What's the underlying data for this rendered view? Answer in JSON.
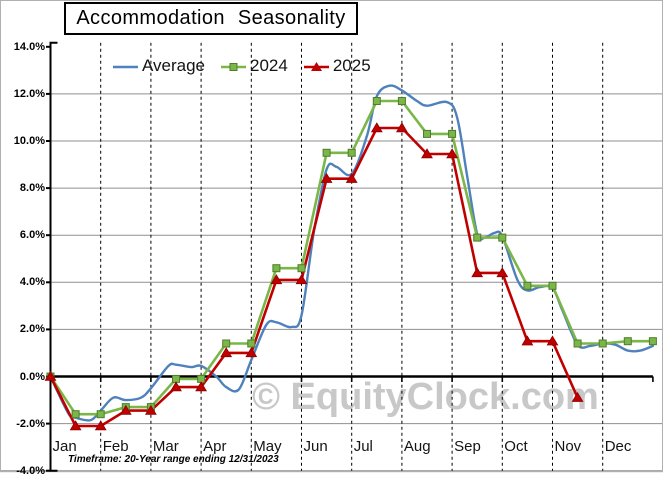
{
  "title": "Accommodation Seasonality",
  "watermark_text": "© EquityClock.com",
  "footnote": "Timeframe: 20-Year range ending 12/31/2023",
  "colors": {
    "average": "#4F81BD",
    "y2024": "#7AB648",
    "y2024_marker_border": "#4F7D2C",
    "y2025": "#C00000",
    "y2025_marker_border": "#8E0000",
    "gridline": "#8F8F8F",
    "axis": "#000000",
    "watermark": "#C8C8C8",
    "outer_border": "#B0B0B0"
  },
  "chart_data": {
    "type": "line",
    "title": "Accommodation Seasonality",
    "xlabel": "",
    "ylabel": "",
    "x_axis": {
      "categories": [
        "Jan",
        "Feb",
        "Mar",
        "Apr",
        "May",
        "Jun",
        "Jul",
        "Aug",
        "Sep",
        "Oct",
        "Nov",
        "Dec"
      ],
      "unit": "months (0 = Jan 1, 12 = Dec 31), semi-monthly data points"
    },
    "y_axis": {
      "tick_labels": [
        "14.0%",
        "12.0%",
        "10.0%",
        "8.0%",
        "6.0%",
        "4.0%",
        "2.0%",
        "0.0%",
        "-2.0%",
        "-4.0%"
      ],
      "tick_values": [
        14,
        12,
        10,
        8,
        6,
        4,
        2,
        0,
        -2,
        -4
      ],
      "min": -4,
      "max": 14,
      "step": 2,
      "unit": "%"
    },
    "legend": [
      "Average",
      "2024",
      "2025"
    ],
    "legend_position": "top",
    "grid": true,
    "series": [
      {
        "name": "Average",
        "color": "#4F81BD",
        "marker": "none",
        "x": [
          0,
          0.35,
          0.5,
          0.8,
          1.0,
          1.25,
          1.5,
          1.8,
          2.0,
          2.35,
          2.5,
          2.8,
          3.0,
          3.3,
          3.5,
          3.75,
          4.0,
          4.3,
          4.5,
          4.8,
          5.0,
          5.25,
          5.5,
          5.7,
          6.0,
          6.3,
          6.5,
          6.75,
          7.0,
          7.3,
          7.5,
          7.9,
          8.1,
          8.3,
          8.5,
          8.65,
          8.85,
          9.0,
          9.3,
          9.5,
          9.75,
          10.0,
          10.2,
          10.5,
          10.75,
          11.0,
          11.25,
          11.5,
          11.75,
          12.0
        ],
        "values": [
          0,
          -1.55,
          -1.75,
          -1.85,
          -1.45,
          -0.9,
          -1.0,
          -0.9,
          -0.5,
          0.45,
          0.5,
          0.4,
          0.45,
          0.0,
          -0.45,
          -0.55,
          0.7,
          2.2,
          2.3,
          2.1,
          2.6,
          6.2,
          8.8,
          8.9,
          8.6,
          10.2,
          11.9,
          12.35,
          12.15,
          11.7,
          11.5,
          11.65,
          11.0,
          8.5,
          6.05,
          5.9,
          6.1,
          5.95,
          4.1,
          3.65,
          3.8,
          3.75,
          2.8,
          1.35,
          1.3,
          1.4,
          1.35,
          1.1,
          1.1,
          1.3
        ]
      },
      {
        "name": "2024",
        "color": "#7AB648",
        "marker": "square",
        "x": [
          0,
          0.5,
          1,
          1.5,
          2,
          2.5,
          3,
          3.5,
          4,
          4.5,
          5,
          5.5,
          6,
          6.5,
          7,
          7.5,
          8,
          8.5,
          9,
          9.5,
          10,
          10.5,
          11,
          11.5,
          12
        ],
        "values": [
          0,
          -1.6,
          -1.6,
          -1.3,
          -1.3,
          -0.1,
          -0.1,
          1.4,
          1.4,
          4.6,
          4.6,
          9.5,
          9.5,
          11.7,
          11.7,
          10.3,
          10.3,
          5.9,
          5.9,
          3.85,
          3.85,
          1.4,
          1.4,
          1.5,
          1.5
        ]
      },
      {
        "name": "2025",
        "color": "#C00000",
        "marker": "triangle",
        "x": [
          0,
          0.5,
          1,
          1.5,
          2,
          2.5,
          3,
          3.5,
          4,
          4.5,
          5,
          5.5,
          6,
          6.5,
          7,
          7.5,
          8,
          8.5,
          9,
          9.5,
          10,
          10.5
        ],
        "values": [
          0,
          -2.1,
          -2.1,
          -1.45,
          -1.45,
          -0.45,
          -0.45,
          1.0,
          1.0,
          4.1,
          4.1,
          8.4,
          8.4,
          10.55,
          10.55,
          9.45,
          9.45,
          4.4,
          4.4,
          1.5,
          1.5,
          -0.9
        ]
      }
    ]
  }
}
